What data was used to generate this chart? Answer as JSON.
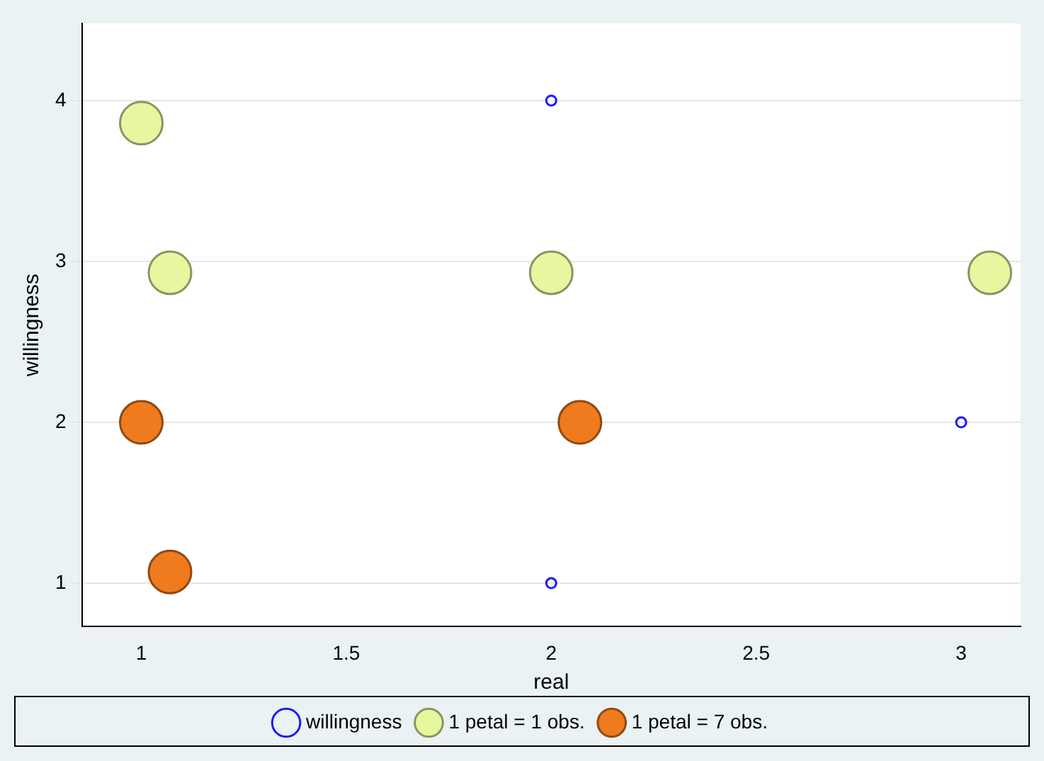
{
  "chart_data": {
    "type": "scatter",
    "xlabel": "real",
    "ylabel": "willingness",
    "xlim": [
      0.855,
      3.145
    ],
    "ylim": [
      0.73,
      4.48
    ],
    "xticks": [
      1,
      1.5,
      2,
      2.5,
      3
    ],
    "yticks": [
      1,
      2,
      3,
      4
    ],
    "grid": "y",
    "legend": "bottom",
    "series": [
      {
        "name": "willingness",
        "color": "#1a1aff",
        "marker": "circle",
        "x": [
          2,
          2,
          3
        ],
        "values": [
          4,
          1,
          2
        ]
      },
      {
        "name": "1 petal = 1 obs.",
        "color": "#e6f7a0",
        "marker": "circle",
        "x": [
          1,
          1.07,
          2,
          3.07
        ],
        "values": [
          3.86,
          2.93,
          2.93,
          2.93
        ]
      },
      {
        "name": "1 petal = 7 obs.",
        "color": "#f07a1e",
        "marker": "circle",
        "x": [
          1,
          1.07,
          2.07
        ],
        "values": [
          2,
          1.07,
          2
        ]
      }
    ]
  }
}
